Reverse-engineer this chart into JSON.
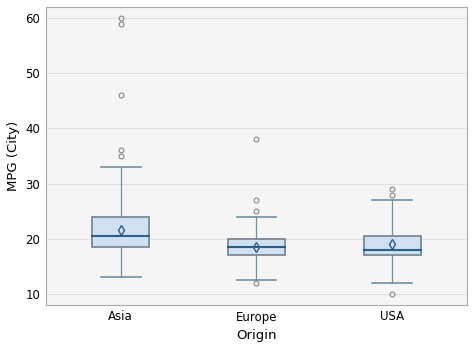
{
  "categories": [
    "Asia",
    "Europe",
    "USA"
  ],
  "xlabel": "Origin",
  "ylabel": "MPG (City)",
  "ylim": [
    8,
    62
  ],
  "yticks": [
    10,
    20,
    30,
    40,
    50,
    60
  ],
  "box_facecolor": "#d0e0f0",
  "box_edgecolor": "#708090",
  "median_color": "#2c5f8a",
  "whisker_color": "#7090a0",
  "cap_color": "#7090a0",
  "mean_marker_edgecolor": "#2c5f8a",
  "mean_marker_facecolor": "none",
  "outlier_edgecolor": "#888888",
  "grid_color": "#e0e0e0",
  "background_color": "#f5f5f5",
  "figure_border_color": "#cccccc",
  "boxes": [
    {
      "label": "Asia",
      "q1": 18.5,
      "median": 20.5,
      "q3": 24.0,
      "mean": 21.5,
      "whisker_low": 13.0,
      "whisker_high": 33.0,
      "outliers": [
        35.0,
        36.0,
        46.0,
        59.0,
        60.0
      ]
    },
    {
      "label": "Europe",
      "q1": 17.0,
      "median": 18.5,
      "q3": 20.0,
      "mean": 18.5,
      "whisker_low": 12.5,
      "whisker_high": 24.0,
      "outliers": [
        12.0,
        25.0,
        27.0,
        38.0
      ]
    },
    {
      "label": "USA",
      "q1": 17.0,
      "median": 18.0,
      "q3": 20.5,
      "mean": 19.0,
      "whisker_low": 12.0,
      "whisker_high": 27.0,
      "outliers": [
        10.0,
        28.0,
        29.0
      ]
    }
  ]
}
